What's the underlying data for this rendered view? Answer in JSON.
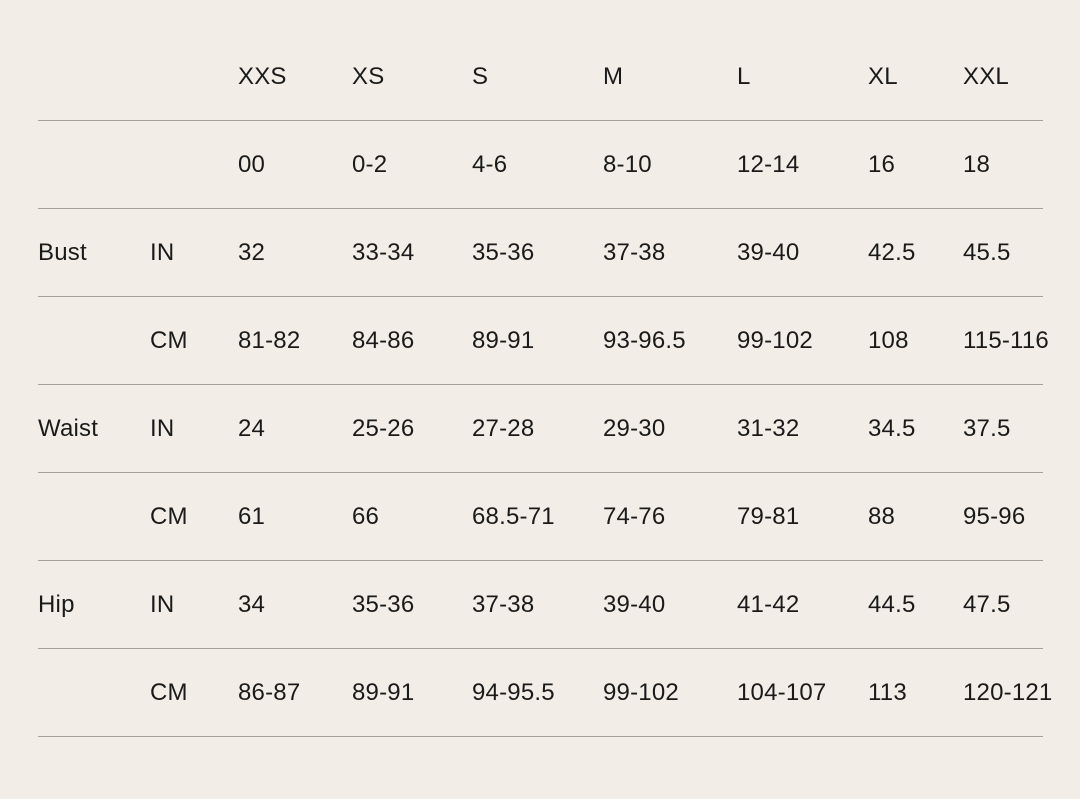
{
  "page": {
    "background_color": "#f2eee7",
    "divider_color": "#a5a19a",
    "text_color": "#1a1a1a"
  },
  "chart_data": {
    "type": "table",
    "size_columns": [
      "XXS",
      "XS",
      "S",
      "M",
      "L",
      "XL",
      "XXL"
    ],
    "numeric_sizes": [
      "00",
      "0-2",
      "4-6",
      "8-10",
      "12-14",
      "16",
      "18"
    ],
    "measurements": [
      {
        "label": "Bust",
        "unit": "IN",
        "values": [
          "32",
          "33-34",
          "35-36",
          "37-38",
          "39-40",
          "42.5",
          "45.5"
        ]
      },
      {
        "label": "",
        "unit": "CM",
        "values": [
          "81-82",
          "84-86",
          "89-91",
          "93-96.5",
          "99-102",
          "108",
          "115-116"
        ]
      },
      {
        "label": "Waist",
        "unit": "IN",
        "values": [
          "24",
          "25-26",
          "27-28",
          "29-30",
          "31-32",
          "34.5",
          "37.5"
        ]
      },
      {
        "label": "",
        "unit": "CM",
        "values": [
          "61",
          "66",
          "68.5-71",
          "74-76",
          "79-81",
          "88",
          "95-96"
        ]
      },
      {
        "label": "Hip",
        "unit": "IN",
        "values": [
          "34",
          "35-36",
          "37-38",
          "39-40",
          "41-42",
          "44.5",
          "47.5"
        ]
      },
      {
        "label": "",
        "unit": "CM",
        "values": [
          "86-87",
          "89-91",
          "94-95.5",
          "99-102",
          "104-107",
          "113",
          "120-121"
        ]
      }
    ]
  }
}
